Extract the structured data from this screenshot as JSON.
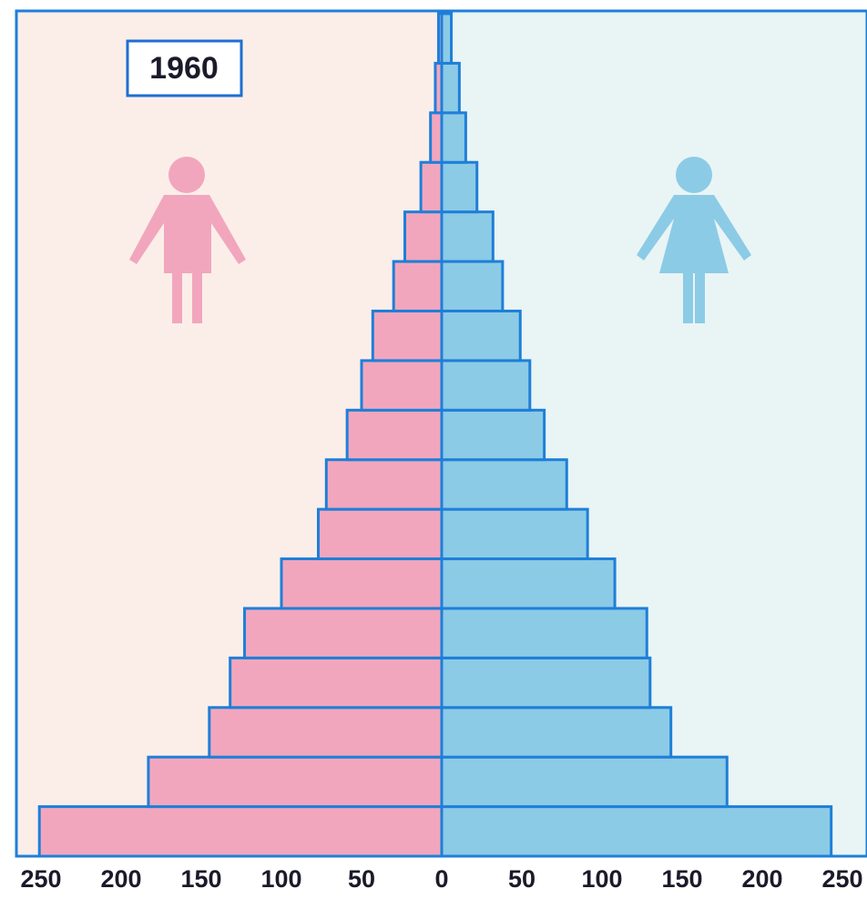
{
  "chart_data": {
    "type": "pyramid",
    "title": "1960",
    "categories": [
      null,
      null,
      null,
      null,
      null,
      null,
      null,
      null,
      null,
      null,
      null,
      null,
      null,
      null,
      null,
      null,
      null
    ],
    "series": [
      {
        "color": "#f2a6bd",
        "values": [
          251,
          183,
          145,
          132,
          123,
          100,
          77,
          72,
          59,
          50,
          43,
          30,
          23,
          13,
          7,
          4,
          2
        ]
      },
      {
        "color": "#8ccbe6",
        "values": [
          243,
          178,
          143,
          130,
          128,
          108,
          91,
          78,
          64,
          55,
          49,
          38,
          32,
          22,
          15,
          11,
          6
        ]
      }
    ],
    "xlim": [
      -250,
      250
    ],
    "xticks": [
      {
        "value": -250,
        "label": "250"
      },
      {
        "value": -200,
        "label": "200"
      },
      {
        "value": -150,
        "label": "150"
      },
      {
        "value": -100,
        "label": "100"
      },
      {
        "value": -50,
        "label": "50"
      },
      0,
      50,
      100,
      150,
      200,
      250
    ]
  }
}
